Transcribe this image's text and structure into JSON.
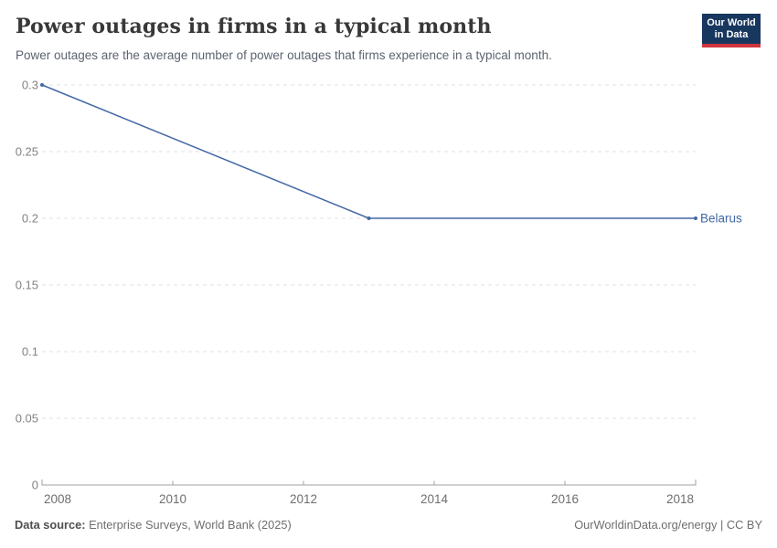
{
  "header": {
    "title": "Power outages in firms in a typical month",
    "subtitle": "Power outages are the average number of power outages that firms experience in a typical month.",
    "logo": {
      "line1": "Our World",
      "line2": "in Data",
      "bg_color": "#18375f",
      "accent_color": "#d0343c"
    }
  },
  "chart_data": {
    "type": "line",
    "title": "Power outages in firms in a typical month",
    "series": [
      {
        "name": "Belarus",
        "color": "#4268a5",
        "x": [
          2008,
          2013,
          2018
        ],
        "values": [
          0.3,
          0.2,
          0.2
        ]
      }
    ],
    "end_label": "Belarus",
    "xlabel": "",
    "ylabel": "",
    "xlim": [
      2008,
      2018
    ],
    "ylim": [
      0,
      0.3
    ],
    "x_ticks": [
      2008,
      2010,
      2012,
      2014,
      2016,
      2018
    ],
    "y_ticks": [
      0,
      0.05,
      0.1,
      0.15,
      0.2,
      0.25,
      0.3
    ],
    "grid": "horizontal-dashed",
    "legend_position": "end-of-line",
    "colors": {
      "grid": "#e2e2e2",
      "axis": "#a1a1a1",
      "y_tick_text": "#828282",
      "x_tick_text": "#6e6e6e"
    }
  },
  "footer": {
    "source_label": "Data source:",
    "source_value": "Enterprise Surveys, World Bank (2025)",
    "attribution": "OurWorldinData.org/energy | CC BY"
  }
}
